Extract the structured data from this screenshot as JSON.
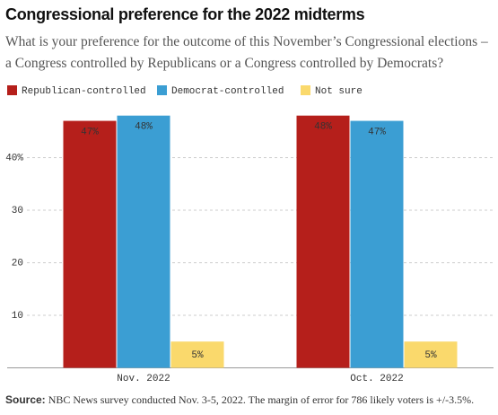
{
  "chart_data": {
    "type": "bar",
    "title": "Congressional preference for the 2022 midterms",
    "subtitle": "What is your preference for the outcome of this November’s Congressional elections – a Congress controlled by Republicans or a Congress controlled by Democrats?",
    "categories": [
      "Nov. 2022",
      "Oct. 2022"
    ],
    "series": [
      {
        "name": "Republican-controlled",
        "color": "#b51f1b",
        "values": [
          47,
          48
        ],
        "value_labels": [
          "47%",
          "48%"
        ]
      },
      {
        "name": "Democrat-controlled",
        "color": "#3b9ed3",
        "values": [
          48,
          47
        ],
        "value_labels": [
          "48%",
          "47%"
        ]
      },
      {
        "name": "Not sure",
        "color": "#fad96c",
        "values": [
          5,
          5
        ],
        "value_labels": [
          "5%",
          "5%"
        ]
      }
    ],
    "ylim": [
      0,
      50
    ],
    "yticks": [
      10,
      20,
      30,
      {
        "value": 40,
        "label": "40%"
      }
    ],
    "grid": true,
    "source_label": "Source:",
    "source": "NBC News survey conducted Nov. 3-5, 2022. The margin of error for 786 likely voters is +/-3.5%."
  }
}
